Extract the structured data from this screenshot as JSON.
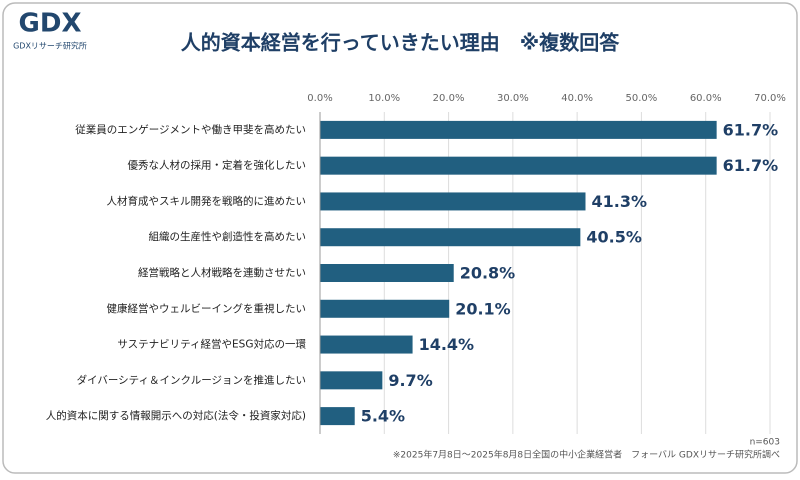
{
  "brand": {
    "logo": "GDX",
    "name": "GDXリサーチ研究所"
  },
  "chart_data": {
    "type": "hbar",
    "title": "人的資本経営を行っていきたい理由　※複数回答",
    "categories": [
      "従業員のエンゲージメントや働き甲斐を高めたい",
      "優秀な人材の採用・定着を強化したい",
      "人材育成やスキル開発を戦略的に進めたい",
      "組織の生産性や創造性を高めたい",
      "経営戦略と人材戦略を連動させたい",
      "健康経営やウェルビーイングを重視したい",
      "サステナビリティ経営やESG対応の一環",
      "ダイバーシティ＆インクルージョンを推進したい",
      "人的資本に関する情報開示への対応(法令・投資家対応)"
    ],
    "values": [
      61.7,
      61.7,
      41.3,
      40.5,
      20.8,
      20.1,
      14.4,
      9.7,
      5.4
    ],
    "value_labels": [
      "61.7%",
      "61.7%",
      "41.3%",
      "40.5%",
      "20.8%",
      "20.1%",
      "14.4%",
      "9.7%",
      "5.4%"
    ],
    "color": "#215f80",
    "xlim": [
      0,
      70
    ],
    "xticks": [
      {
        "value": 0,
        "label": "0.0%"
      },
      {
        "value": 10,
        "label": "10.0%"
      },
      {
        "value": 20,
        "label": "20.0%"
      },
      {
        "value": 30,
        "label": "30.0%"
      },
      {
        "value": 40,
        "label": "40.0%"
      },
      {
        "value": 50,
        "label": "50.0%"
      },
      {
        "value": 60,
        "label": "60.0%"
      },
      {
        "value": 70,
        "label": "70.0%"
      }
    ],
    "grid": true,
    "sample_size": "n=603",
    "source": "※2025年7月8日〜2025年8月8日全国の中小企業経営者　フォーバル GDXリサーチ研究所調べ"
  }
}
